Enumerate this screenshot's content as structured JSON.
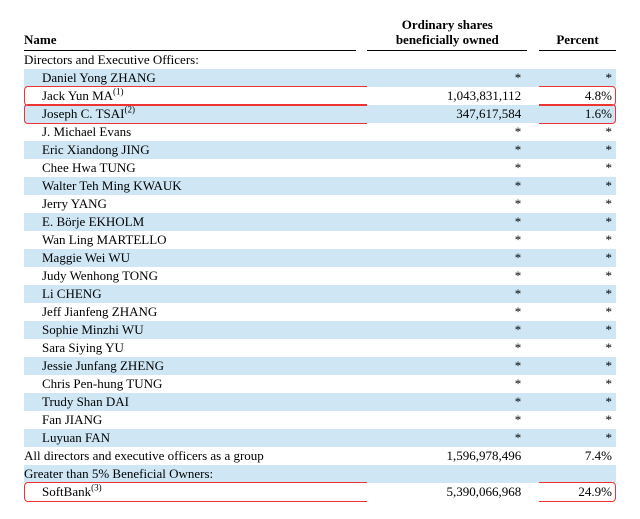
{
  "colors": {
    "row_alt_bg": "#cfe7f5",
    "highlight_border": "#e33333",
    "text": "#000000",
    "background": "#ffffff"
  },
  "typography": {
    "font_family": "Times New Roman",
    "base_fontsize_pt": 10
  },
  "columns": {
    "name_label": "Name",
    "shares_label_line1": "Ordinary shares",
    "shares_label_line2": "beneficially owned",
    "percent_label": "Percent",
    "widths_pct": [
      56,
      2,
      27,
      2,
      13
    ]
  },
  "sections": {
    "directors_label": "Directors and Executive Officers:",
    "greater5_label": "Greater than 5% Beneficial Owners:"
  },
  "rows": [
    {
      "name": "Daniel Yong ZHANG",
      "shares": "*",
      "percent": "*",
      "alt": true,
      "hl": false,
      "sup": ""
    },
    {
      "name": "Jack Yun MA",
      "shares": "1,043,831,112",
      "percent": "4.8%",
      "alt": false,
      "hl": true,
      "sup": "(1)"
    },
    {
      "name": "Joseph C. TSAI",
      "shares": "347,617,584",
      "percent": "1.6%",
      "alt": true,
      "hl": true,
      "sup": "(2)"
    },
    {
      "name": "J. Michael Evans",
      "shares": "*",
      "percent": "*",
      "alt": false,
      "hl": false,
      "sup": ""
    },
    {
      "name": "Eric Xiandong JING",
      "shares": "*",
      "percent": "*",
      "alt": true,
      "hl": false,
      "sup": ""
    },
    {
      "name": "Chee Hwa TUNG",
      "shares": "*",
      "percent": "*",
      "alt": false,
      "hl": false,
      "sup": ""
    },
    {
      "name": "Walter Teh Ming KWAUK",
      "shares": "*",
      "percent": "*",
      "alt": true,
      "hl": false,
      "sup": ""
    },
    {
      "name": "Jerry YANG",
      "shares": "*",
      "percent": "*",
      "alt": false,
      "hl": false,
      "sup": ""
    },
    {
      "name": "E. Börje EKHOLM",
      "shares": "*",
      "percent": "*",
      "alt": true,
      "hl": false,
      "sup": ""
    },
    {
      "name": "Wan Ling MARTELLO",
      "shares": "*",
      "percent": "*",
      "alt": false,
      "hl": false,
      "sup": ""
    },
    {
      "name": "Maggie Wei WU",
      "shares": "*",
      "percent": "*",
      "alt": true,
      "hl": false,
      "sup": ""
    },
    {
      "name": "Judy Wenhong TONG",
      "shares": "*",
      "percent": "*",
      "alt": false,
      "hl": false,
      "sup": ""
    },
    {
      "name": "Li CHENG",
      "shares": "*",
      "percent": "*",
      "alt": true,
      "hl": false,
      "sup": ""
    },
    {
      "name": "Jeff Jianfeng ZHANG",
      "shares": "*",
      "percent": "*",
      "alt": false,
      "hl": false,
      "sup": ""
    },
    {
      "name": "Sophie Minzhi WU",
      "shares": "*",
      "percent": "*",
      "alt": true,
      "hl": false,
      "sup": ""
    },
    {
      "name": "Sara Siying YU",
      "shares": "*",
      "percent": "*",
      "alt": false,
      "hl": false,
      "sup": ""
    },
    {
      "name": "Jessie Junfang ZHENG",
      "shares": "*",
      "percent": "*",
      "alt": true,
      "hl": false,
      "sup": ""
    },
    {
      "name": "Chris Pen-hung TUNG",
      "shares": "*",
      "percent": "*",
      "alt": false,
      "hl": false,
      "sup": ""
    },
    {
      "name": "Trudy Shan DAI",
      "shares": "*",
      "percent": "*",
      "alt": true,
      "hl": false,
      "sup": ""
    },
    {
      "name": "Fan JIANG",
      "shares": "*",
      "percent": "*",
      "alt": false,
      "hl": false,
      "sup": ""
    },
    {
      "name": "Luyuan FAN",
      "shares": "*",
      "percent": "*",
      "alt": true,
      "hl": false,
      "sup": ""
    }
  ],
  "group_total": {
    "name": "All directors and executive officers as a group",
    "shares": "1,596,978,496",
    "percent": "7.4%"
  },
  "greater5_rows": [
    {
      "name": "SoftBank",
      "shares": "5,390,066,968",
      "percent": "24.9%",
      "alt": false,
      "hl": true,
      "sup": "(3)"
    }
  ]
}
